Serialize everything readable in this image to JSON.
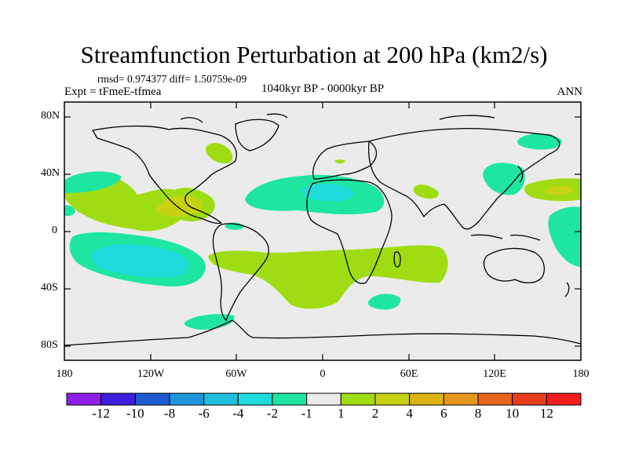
{
  "title": "Streamfunction Perturbation at 200 hPa (km2/s)",
  "stats_line": "rmsd= 0.974377 diff= 1.50759e-09",
  "experiment": "Expt = tFmeE-tfmea",
  "period": "1040kyr BP - 0000kyr BP",
  "season": "ANN",
  "axes": {
    "lat_labels": [
      "80N",
      "40N",
      "0",
      "40S",
      "80S"
    ],
    "lon_labels": [
      "180",
      "120W",
      "60W",
      "0",
      "60E",
      "120E",
      "180"
    ]
  },
  "colorbar": {
    "colors": [
      "#8c1ee6",
      "#3c1edc",
      "#1e5ad2",
      "#1e96dc",
      "#1ebedc",
      "#1edcdc",
      "#1ee6a0",
      "#ebebeb",
      "#a0dc14",
      "#c8d214",
      "#dcb414",
      "#e6961e",
      "#e6641e",
      "#e63c1e",
      "#f01e1e"
    ],
    "labels": [
      "-12",
      "-10",
      "-8",
      "-6",
      "-4",
      "-2",
      "-1",
      "1",
      "2",
      "4",
      "6",
      "8",
      "10",
      "12"
    ]
  },
  "field_colors": {
    "background": "#ebebeb",
    "neg_1_2": "#1ee6a0",
    "neg_2_4": "#1edcdc",
    "pos_1_2": "#a0dc14",
    "pos_2_4": "#c8d214",
    "pos_4_6": "#dcb414"
  }
}
